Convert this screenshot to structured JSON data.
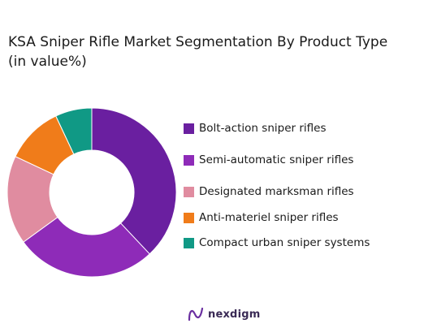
{
  "title": {
    "line1": "KSA Sniper Rifle Market Segmentation By Product Type",
    "line2": "(in value%)"
  },
  "brand": {
    "name": "nexdigm",
    "logo_icon": "nexdigm-logo-icon"
  },
  "chart_data": {
    "type": "pie",
    "variant": "donut",
    "legend_position": "right",
    "series": [
      {
        "name": "Bolt-action sniper rifles",
        "value": 38,
        "color": "#6a1fa0"
      },
      {
        "name": "Semi-automatic sniper rifles",
        "value": 27,
        "color": "#8e2bb8"
      },
      {
        "name": "Designated marksman rifles",
        "value": 17,
        "color": "#e08ca0"
      },
      {
        "name": "Anti-materiel sniper rifles",
        "value": 11,
        "color": "#f07c1a"
      },
      {
        "name": "Compact urban sniper systems",
        "value": 7,
        "color": "#109985"
      }
    ]
  }
}
